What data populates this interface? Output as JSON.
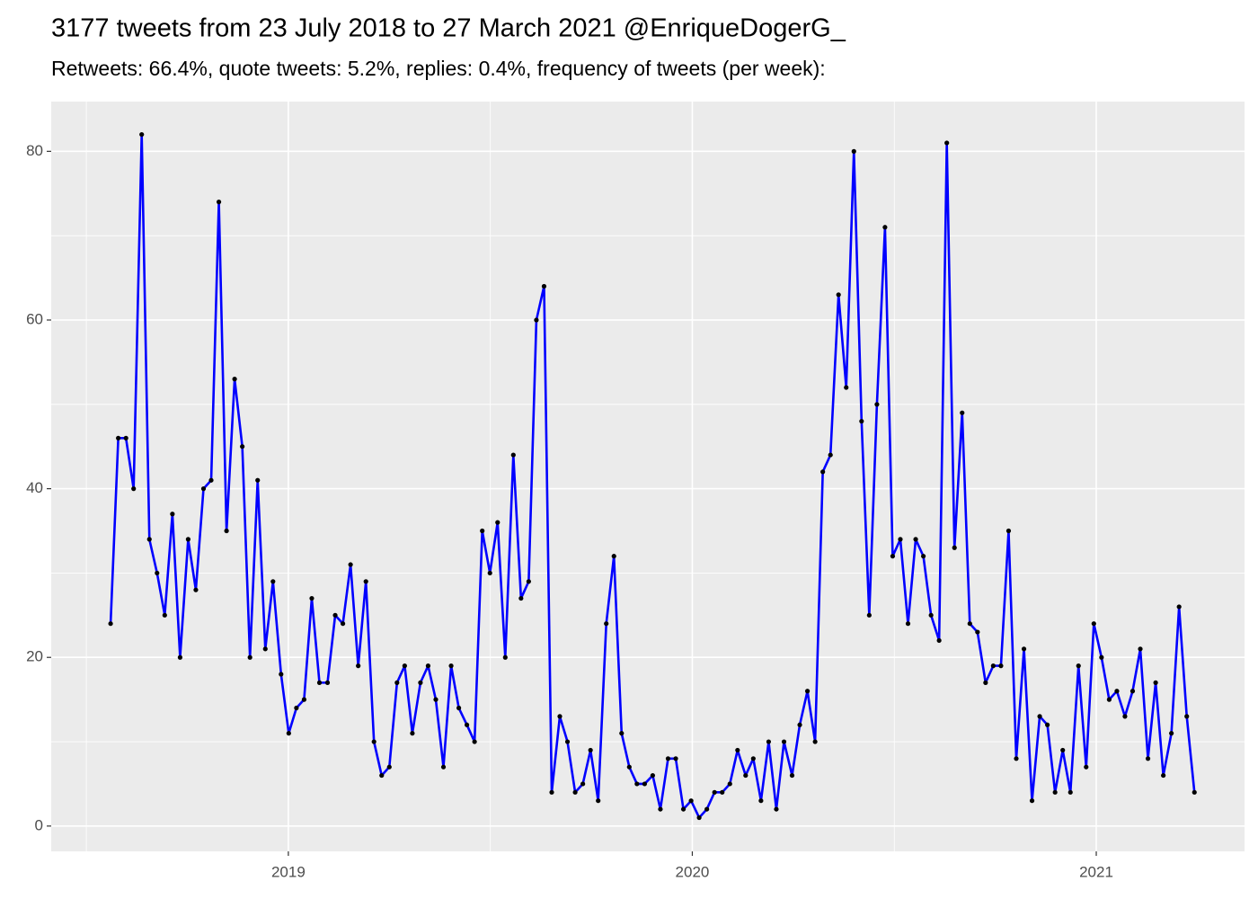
{
  "chart_data": {
    "type": "line",
    "title": "3177 tweets from 23 July 2018 to 27 March 2021 @EnriqueDogerG_",
    "subtitle": "Retweets: 66.4%, quote tweets: 5.2%, replies: 0.4%, frequency of tweets (per week):",
    "x": [
      2018.56,
      2018.579,
      2018.598,
      2018.617,
      2018.637,
      2018.656,
      2018.675,
      2018.694,
      2018.713,
      2018.732,
      2018.752,
      2018.771,
      2018.79,
      2018.809,
      2018.828,
      2018.847,
      2018.867,
      2018.886,
      2018.905,
      2018.924,
      2018.943,
      2018.962,
      2018.982,
      2019.001,
      2019.02,
      2019.039,
      2019.058,
      2019.077,
      2019.097,
      2019.116,
      2019.135,
      2019.154,
      2019.173,
      2019.192,
      2019.212,
      2019.231,
      2019.25,
      2019.269,
      2019.288,
      2019.307,
      2019.327,
      2019.346,
      2019.365,
      2019.384,
      2019.403,
      2019.422,
      2019.442,
      2019.461,
      2019.48,
      2019.499,
      2019.518,
      2019.537,
      2019.557,
      2019.576,
      2019.595,
      2019.614,
      2019.633,
      2019.652,
      2019.672,
      2019.691,
      2019.71,
      2019.729,
      2019.748,
      2019.767,
      2019.787,
      2019.806,
      2019.825,
      2019.844,
      2019.863,
      2019.882,
      2019.902,
      2019.921,
      2019.94,
      2019.959,
      2019.978,
      2019.997,
      2020.017,
      2020.036,
      2020.055,
      2020.074,
      2020.093,
      2020.112,
      2020.132,
      2020.151,
      2020.17,
      2020.189,
      2020.208,
      2020.227,
      2020.247,
      2020.266,
      2020.285,
      2020.304,
      2020.323,
      2020.342,
      2020.362,
      2020.381,
      2020.4,
      2020.419,
      2020.438,
      2020.457,
      2020.477,
      2020.496,
      2020.515,
      2020.534,
      2020.553,
      2020.572,
      2020.591,
      2020.611,
      2020.63,
      2020.649,
      2020.668,
      2020.687,
      2020.706,
      2020.726,
      2020.745,
      2020.764,
      2020.783,
      2020.802,
      2020.821,
      2020.841,
      2020.86,
      2020.879,
      2020.898,
      2020.917,
      2020.936,
      2020.956,
      2020.975,
      2020.994,
      2021.013,
      2021.032,
      2021.051,
      2021.071,
      2021.09,
      2021.109,
      2021.128,
      2021.147,
      2021.166,
      2021.186,
      2021.205,
      2021.224,
      2021.243
    ],
    "series": [
      {
        "color": "#0000ff",
        "point_color": "#000000",
        "values": [
          24,
          46,
          46,
          40,
          82,
          34,
          30,
          25,
          37,
          20,
          34,
          28,
          40,
          41,
          74,
          35,
          53,
          45,
          20,
          41,
          21,
          29,
          18,
          11,
          14,
          15,
          27,
          17,
          17,
          25,
          24,
          31,
          19,
          29,
          10,
          6,
          7,
          17,
          19,
          11,
          17,
          19,
          15,
          7,
          19,
          14,
          12,
          10,
          35,
          30,
          36,
          20,
          44,
          27,
          29,
          60,
          64,
          4,
          13,
          10,
          4,
          5,
          9,
          3,
          24,
          32,
          11,
          7,
          5,
          5,
          6,
          2,
          8,
          8,
          2,
          3,
          1,
          2,
          4,
          4,
          5,
          9,
          6,
          8,
          3,
          10,
          2,
          10,
          6,
          12,
          16,
          10,
          42,
          44,
          63,
          52,
          80,
          48,
          25,
          50,
          71,
          32,
          34,
          24,
          34,
          32,
          25,
          22,
          81,
          33,
          49,
          24,
          23,
          17,
          19,
          19,
          35,
          8,
          21,
          3,
          13,
          12,
          4,
          9,
          4,
          19,
          7,
          24,
          20,
          15,
          16,
          13,
          16,
          21,
          8,
          17,
          6,
          11,
          26,
          13,
          4
        ]
      }
    ],
    "xlim": [
      2018.413,
      2021.367
    ],
    "xticks": [
      2019,
      2020,
      2021
    ],
    "ylim": [
      -3,
      85.9
    ],
    "yticks": [
      0,
      20,
      40,
      60,
      80
    ],
    "grid": true,
    "panel_color": "#ebebeb"
  }
}
